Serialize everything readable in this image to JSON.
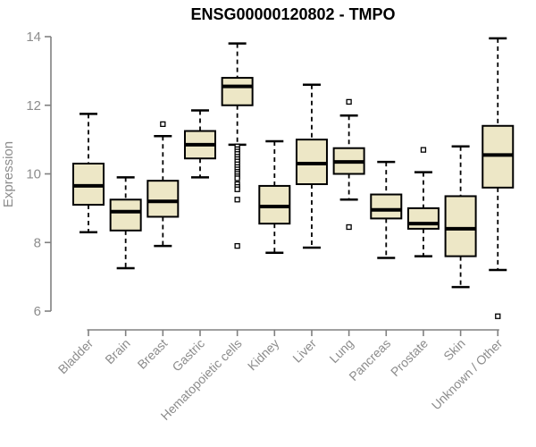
{
  "chart_data": {
    "type": "boxplot",
    "title": "ENSG00000120802 - TMPO",
    "ylabel": "Expression",
    "xlabel": "",
    "ylim": [
      6,
      14
    ],
    "yticks": [
      6,
      8,
      10,
      12,
      14
    ],
    "grid": false,
    "legend": false,
    "categories": [
      "Bladder",
      "Brain",
      "Breast",
      "Gastric",
      "Hematopoietic cells",
      "Kidney",
      "Liver",
      "Lung",
      "Pancreas",
      "Prostate",
      "Skin",
      "Unknown / Other"
    ],
    "series": [
      {
        "name": "Bladder",
        "whisker_low": 8.3,
        "q1": 9.1,
        "median": 9.65,
        "q3": 10.3,
        "whisker_high": 11.75,
        "outliers": []
      },
      {
        "name": "Brain",
        "whisker_low": 7.25,
        "q1": 8.35,
        "median": 8.9,
        "q3": 9.25,
        "whisker_high": 9.9,
        "outliers": []
      },
      {
        "name": "Breast",
        "whisker_low": 7.9,
        "q1": 8.75,
        "median": 9.2,
        "q3": 9.8,
        "whisker_high": 11.1,
        "outliers": [
          11.45
        ]
      },
      {
        "name": "Gastric",
        "whisker_low": 9.9,
        "q1": 10.45,
        "median": 10.85,
        "q3": 11.25,
        "whisker_high": 11.85,
        "outliers": []
      },
      {
        "name": "Hematopoietic cells",
        "whisker_low": 10.85,
        "q1": 12.0,
        "median": 12.55,
        "q3": 12.8,
        "whisker_high": 13.8,
        "outliers": [
          10.8,
          10.72,
          10.65,
          10.58,
          10.5,
          10.43,
          10.36,
          10.28,
          10.2,
          10.13,
          10.06,
          10.0,
          9.93,
          9.87,
          9.7,
          9.62,
          9.55,
          9.25,
          7.9
        ]
      },
      {
        "name": "Kidney",
        "whisker_low": 7.7,
        "q1": 8.55,
        "median": 9.05,
        "q3": 9.65,
        "whisker_high": 10.95,
        "outliers": []
      },
      {
        "name": "Liver",
        "whisker_low": 7.85,
        "q1": 9.7,
        "median": 10.3,
        "q3": 11.0,
        "whisker_high": 12.6,
        "outliers": []
      },
      {
        "name": "Lung",
        "whisker_low": 9.25,
        "q1": 10.0,
        "median": 10.35,
        "q3": 10.75,
        "whisker_high": 11.7,
        "outliers": [
          12.1,
          8.45
        ]
      },
      {
        "name": "Pancreas",
        "whisker_low": 7.55,
        "q1": 8.7,
        "median": 8.95,
        "q3": 9.4,
        "whisker_high": 10.35,
        "outliers": []
      },
      {
        "name": "Prostate",
        "whisker_low": 7.6,
        "q1": 8.4,
        "median": 8.55,
        "q3": 9.0,
        "whisker_high": 10.05,
        "outliers": [
          10.7
        ]
      },
      {
        "name": "Skin",
        "whisker_low": 6.7,
        "q1": 7.6,
        "median": 8.4,
        "q3": 9.35,
        "whisker_high": 10.8,
        "outliers": []
      },
      {
        "name": "Unknown / Other",
        "whisker_low": 7.2,
        "q1": 9.6,
        "median": 10.55,
        "q3": 11.4,
        "whisker_high": 13.95,
        "outliers": [
          5.85
        ]
      }
    ],
    "colors": {
      "box_fill": "#ede7c6",
      "box_stroke": "#000000",
      "median": "#000000",
      "whisker": "#000000",
      "outlier_stroke": "#000000",
      "outlier_fill": "#ffffff",
      "axis": "#808080",
      "tick_label": "#8c8c8c",
      "title": "#000000",
      "background": "#ffffff"
    }
  }
}
